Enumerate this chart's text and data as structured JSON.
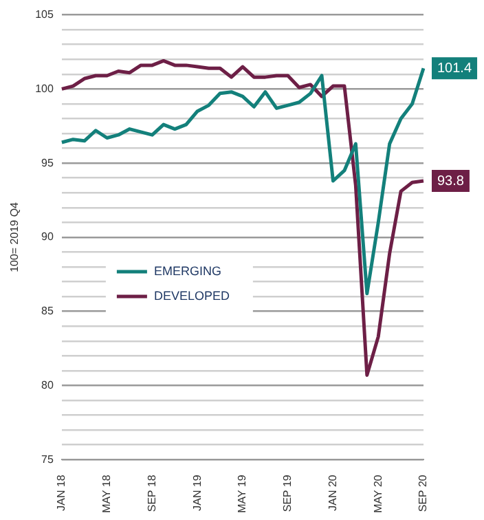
{
  "chart_data": {
    "type": "line",
    "ylabel": "100= 2019 Q4",
    "categories": [
      "JAN 18",
      null,
      null,
      null,
      "MAY 18",
      null,
      null,
      null,
      "SEP 18",
      null,
      null,
      null,
      "JAN 19",
      null,
      null,
      null,
      "MAY 19",
      null,
      null,
      null,
      "SEP 19",
      null,
      null,
      null,
      "JAN 20",
      null,
      null,
      null,
      "MAY 20",
      null,
      null,
      null,
      "SEP 20"
    ],
    "series": [
      {
        "name": "EMERGING",
        "color": "#13807b",
        "values": [
          96.4,
          96.6,
          96.5,
          97.2,
          96.7,
          96.9,
          97.3,
          97.1,
          96.9,
          97.6,
          97.3,
          97.6,
          98.5,
          98.9,
          99.7,
          99.8,
          99.5,
          98.8,
          99.8,
          98.7,
          98.9,
          99.1,
          99.7,
          100.9,
          93.8,
          94.5,
          96.3,
          86.2,
          91,
          96.3,
          98,
          99,
          101.4
        ],
        "value_labels": [
          null,
          null,
          null,
          null,
          null,
          null,
          null,
          null,
          null,
          null,
          null,
          null,
          null,
          null,
          null,
          null,
          null,
          null,
          null,
          null,
          null,
          null,
          null,
          null,
          null,
          null,
          null,
          null,
          null,
          null,
          null,
          null,
          "101.4"
        ]
      },
      {
        "name": "DEVELOPED",
        "color": "#6d1f46",
        "values": [
          100,
          100.2,
          100.7,
          100.9,
          100.9,
          101.2,
          101.1,
          101.6,
          101.6,
          101.9,
          101.6,
          101.6,
          101.5,
          101.4,
          101.4,
          100.8,
          101.5,
          100.8,
          100.8,
          100.9,
          100.9,
          100.1,
          100.3,
          99.5,
          100.2,
          100.2,
          93.5,
          80.7,
          83.3,
          88.9,
          93.1,
          93.7,
          93.8
        ],
        "value_labels": [
          null,
          null,
          null,
          null,
          null,
          null,
          null,
          null,
          null,
          null,
          null,
          null,
          null,
          null,
          null,
          null,
          null,
          null,
          null,
          null,
          null,
          null,
          null,
          null,
          null,
          null,
          null,
          null,
          null,
          null,
          null,
          null,
          "93.8"
        ]
      }
    ],
    "ylim": [
      75,
      105
    ],
    "yticks": [
      75,
      {
        "value": 76,
        "label": null
      },
      {
        "value": 77,
        "label": null
      },
      {
        "value": 78,
        "label": null
      },
      {
        "value": 79,
        "label": null
      },
      80,
      {
        "value": 81,
        "label": null
      },
      {
        "value": 82,
        "label": null
      },
      {
        "value": 83,
        "label": null
      },
      {
        "value": 84,
        "label": null
      },
      85,
      {
        "value": 86,
        "label": null
      },
      {
        "value": 87,
        "label": null
      },
      {
        "value": 88,
        "label": null
      },
      {
        "value": 89,
        "label": null
      },
      90,
      {
        "value": 91,
        "label": null
      },
      {
        "value": 92,
        "label": null
      },
      {
        "value": 93,
        "label": null
      },
      {
        "value": 94,
        "label": null
      },
      95,
      {
        "value": 96,
        "label": null
      },
      {
        "value": 97,
        "label": null
      },
      {
        "value": 98,
        "label": null
      },
      {
        "value": 99,
        "label": null
      },
      100,
      {
        "value": 101,
        "label": null
      },
      {
        "value": 102,
        "label": null
      },
      {
        "value": 103,
        "label": null
      },
      {
        "value": 104,
        "label": null
      },
      105
    ],
    "grid": "y",
    "legend": "center",
    "marker": "none",
    "line_style": "solid"
  }
}
